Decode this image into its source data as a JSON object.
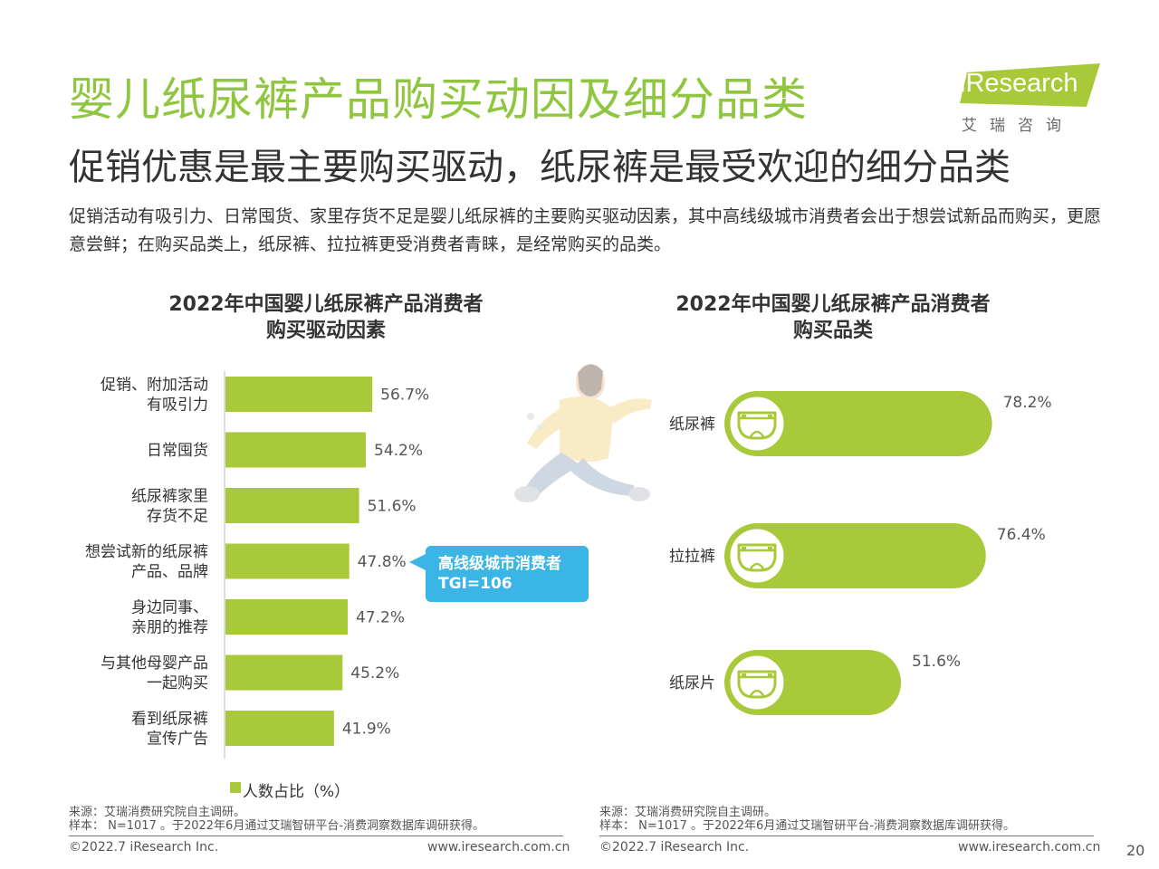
{
  "header": {
    "title": "婴儿纸尿裤产品购买动因及细分品类",
    "subtitle": "促销优惠是最主要购买驱动，纸尿裤是最受欢迎的细分品类",
    "description": "促销活动有吸引力、日常囤货、家里存货不足是婴儿纸尿裤的主要购买驱动因素，其中高线级城市消费者会出于想尝试新品而购买，更愿意尝鲜；在购买品类上，纸尿裤、拉拉裤更受消费者青睐，是经常购买的品类。"
  },
  "logo": {
    "brand": "iResearch",
    "sub": "艾瑞咨询",
    "color": "#a8c93a"
  },
  "chart_data": [
    {
      "type": "bar",
      "orientation": "horizontal",
      "title": "2022年中国婴儿纸尿裤产品消费者\n购买驱动因素",
      "categories": [
        "促销、附加活动\n有吸引力",
        "日常囤货",
        "纸尿裤家里\n存货不足",
        "想尝试新的纸尿裤\n产品、品牌",
        "身边同事、\n亲朋的推荐",
        "与其他母婴产品\n一起购买",
        "看到纸尿裤\n宣传广告"
      ],
      "value_labels": [
        "56.7%",
        "54.2%",
        "51.6%",
        "47.8%",
        "47.2%",
        "45.2%",
        "41.9%"
      ],
      "series": [
        {
          "name": "人数占比（%）",
          "values": [
            56.7,
            54.2,
            51.6,
            47.8,
            47.2,
            45.2,
            41.9
          ]
        }
      ],
      "xlim": [
        0,
        100
      ],
      "bar_color": "#a8c93a",
      "legend": "bottom",
      "annotation": {
        "text": "高线级城市消费者\nTGI=106",
        "category": "想尝试新的纸尿裤\n产品、品牌",
        "color": "#3bb5e6"
      }
    },
    {
      "type": "bar",
      "orientation": "horizontal",
      "title": "2022年中国婴儿纸尿裤产品消费者\n购买品类",
      "categories": [
        "纸尿裤",
        "拉拉裤",
        "纸尿片"
      ],
      "value_labels": [
        "78.2%",
        "76.4%",
        "51.6%"
      ],
      "values": [
        78.2,
        76.4,
        51.6
      ],
      "xlim": [
        0,
        100
      ],
      "bar_color": "#a8c93a",
      "icon": "diaper-icon"
    }
  ],
  "footer": {
    "left_source": "来源：艾瑞消费研究院自主调研。",
    "left_sample": "样本： N=1017 。于2022年6月通过艾瑞智研平台-消费洞察数据库调研获得。",
    "right_source": "来源：艾瑞消费研究院自主调研。",
    "right_sample": "样本： N=1017 。于2022年6月通过艾瑞智研平台-消费洞察数据库调研获得。",
    "copyright_left": "©2022.7 iResearch Inc.",
    "url_left": "www.iresearch.com.cn",
    "copyright_right": "©2022.7 iResearch Inc.",
    "url_right": "www.iresearch.com.cn",
    "page_number": "20"
  }
}
